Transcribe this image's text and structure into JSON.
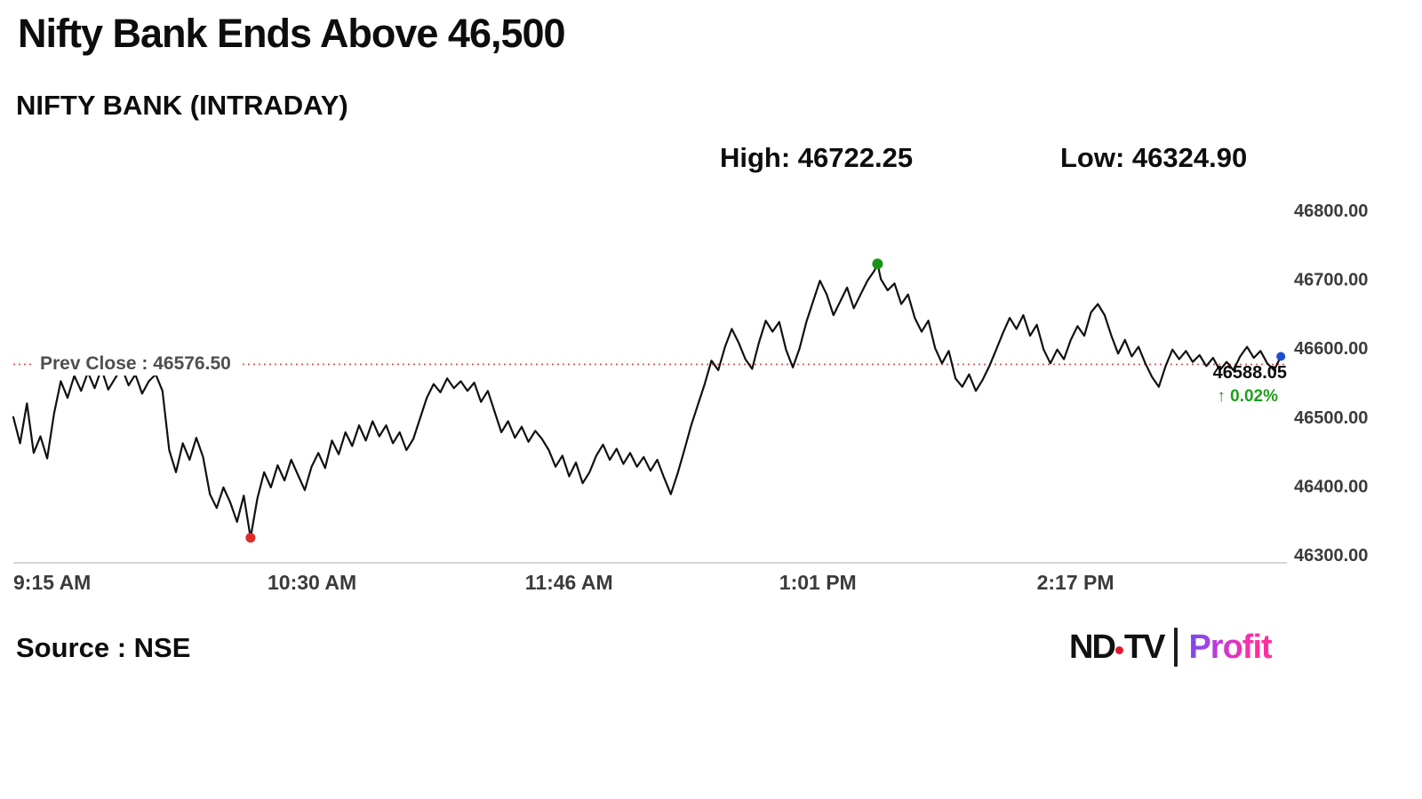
{
  "headline": "Nifty Bank Ends Above 46,500",
  "subtitle": "NIFTY BANK (INTRADAY)",
  "stats": {
    "high_label": "High: 46722.25",
    "low_label": "Low: 46324.90"
  },
  "prev_close_label": "Prev Close : 46576.50",
  "last": {
    "price_label": "46588.05",
    "change_label": "↑ 0.02%"
  },
  "source": "Source : NSE",
  "logo": {
    "ndtv_left": "ND",
    "ndtv_right": "TV",
    "profit": "Profit"
  },
  "colors": {
    "line": "#111111",
    "prev_close_line": "#d94f4f",
    "high_marker": "#169416",
    "low_marker": "#e02b2b",
    "last_marker": "#1f4ccf",
    "change_up": "#1e9e1e",
    "tick_text": "#3b3b3b",
    "axis_line": "#c9c9c9",
    "logo_dot": "#e01b2c"
  },
  "chart_data": {
    "type": "line",
    "title": "NIFTY BANK (INTRADAY)",
    "x_unit": "minutes since 9:15 AM",
    "xlim": [
      0,
      375
    ],
    "ylim": [
      46300,
      46800
    ],
    "grid": false,
    "legend": "none",
    "prev_close": 46576.5,
    "close": 46588.05,
    "change_pct": 0.02,
    "high": {
      "minute": 255,
      "value": 46722.25
    },
    "low": {
      "minute": 70,
      "value": 46324.9
    },
    "x_ticks": [
      {
        "minute": 0,
        "label": "9:15 AM"
      },
      {
        "minute": 75,
        "label": "10:30 AM"
      },
      {
        "minute": 151,
        "label": "11:46 AM"
      },
      {
        "minute": 226,
        "label": "1:01 PM"
      },
      {
        "minute": 302,
        "label": "2:17 PM"
      }
    ],
    "y_ticks": [
      {
        "value": 46300,
        "label": "46300.00"
      },
      {
        "value": 46400,
        "label": "46400.00"
      },
      {
        "value": 46500,
        "label": "46500.00"
      },
      {
        "value": 46600,
        "label": "46600.00"
      },
      {
        "value": 46700,
        "label": "46700.00"
      },
      {
        "value": 46800,
        "label": "46800.00"
      }
    ],
    "points": [
      [
        0,
        46500
      ],
      [
        2,
        46462
      ],
      [
        4,
        46520
      ],
      [
        6,
        46448
      ],
      [
        8,
        46472
      ],
      [
        10,
        46440
      ],
      [
        12,
        46505
      ],
      [
        14,
        46552
      ],
      [
        16,
        46528
      ],
      [
        18,
        46560
      ],
      [
        20,
        46538
      ],
      [
        22,
        46565
      ],
      [
        24,
        46542
      ],
      [
        26,
        46570
      ],
      [
        28,
        46540
      ],
      [
        30,
        46556
      ],
      [
        32,
        46572
      ],
      [
        34,
        46546
      ],
      [
        36,
        46562
      ],
      [
        38,
        46534
      ],
      [
        40,
        46552
      ],
      [
        42,
        46562
      ],
      [
        44,
        46538
      ],
      [
        46,
        46452
      ],
      [
        48,
        46420
      ],
      [
        50,
        46462
      ],
      [
        52,
        46438
      ],
      [
        54,
        46470
      ],
      [
        56,
        46442
      ],
      [
        58,
        46388
      ],
      [
        60,
        46368
      ],
      [
        62,
        46398
      ],
      [
        64,
        46376
      ],
      [
        66,
        46348
      ],
      [
        68,
        46386
      ],
      [
        70,
        46324.9
      ],
      [
        72,
        46382
      ],
      [
        74,
        46420
      ],
      [
        76,
        46398
      ],
      [
        78,
        46430
      ],
      [
        80,
        46408
      ],
      [
        82,
        46438
      ],
      [
        84,
        46416
      ],
      [
        86,
        46394
      ],
      [
        88,
        46428
      ],
      [
        90,
        46448
      ],
      [
        92,
        46426
      ],
      [
        94,
        46466
      ],
      [
        96,
        46446
      ],
      [
        98,
        46478
      ],
      [
        100,
        46458
      ],
      [
        102,
        46488
      ],
      [
        104,
        46466
      ],
      [
        106,
        46494
      ],
      [
        108,
        46472
      ],
      [
        110,
        46488
      ],
      [
        112,
        46462
      ],
      [
        114,
        46478
      ],
      [
        116,
        46452
      ],
      [
        118,
        46468
      ],
      [
        120,
        46498
      ],
      [
        122,
        46528
      ],
      [
        124,
        46548
      ],
      [
        126,
        46536
      ],
      [
        128,
        46556
      ],
      [
        130,
        46542
      ],
      [
        132,
        46552
      ],
      [
        134,
        46538
      ],
      [
        136,
        46550
      ],
      [
        138,
        46522
      ],
      [
        140,
        46538
      ],
      [
        142,
        46508
      ],
      [
        144,
        46478
      ],
      [
        146,
        46494
      ],
      [
        148,
        46470
      ],
      [
        150,
        46486
      ],
      [
        152,
        46464
      ],
      [
        154,
        46480
      ],
      [
        156,
        46468
      ],
      [
        158,
        46452
      ],
      [
        160,
        46428
      ],
      [
        162,
        46444
      ],
      [
        164,
        46414
      ],
      [
        166,
        46434
      ],
      [
        168,
        46404
      ],
      [
        170,
        46420
      ],
      [
        172,
        46444
      ],
      [
        174,
        46460
      ],
      [
        176,
        46438
      ],
      [
        178,
        46454
      ],
      [
        180,
        46432
      ],
      [
        182,
        46448
      ],
      [
        184,
        46428
      ],
      [
        186,
        46442
      ],
      [
        188,
        46422
      ],
      [
        190,
        46438
      ],
      [
        192,
        46412
      ],
      [
        194,
        46388
      ],
      [
        196,
        46418
      ],
      [
        198,
        46452
      ],
      [
        200,
        46488
      ],
      [
        202,
        46518
      ],
      [
        204,
        46548
      ],
      [
        206,
        46582
      ],
      [
        208,
        46568
      ],
      [
        210,
        46602
      ],
      [
        212,
        46628
      ],
      [
        214,
        46608
      ],
      [
        216,
        46584
      ],
      [
        218,
        46570
      ],
      [
        220,
        46608
      ],
      [
        222,
        46640
      ],
      [
        224,
        46624
      ],
      [
        226,
        46638
      ],
      [
        228,
        46598
      ],
      [
        230,
        46572
      ],
      [
        232,
        46600
      ],
      [
        234,
        46638
      ],
      [
        236,
        46668
      ],
      [
        238,
        46698
      ],
      [
        240,
        46678
      ],
      [
        242,
        46648
      ],
      [
        244,
        46668
      ],
      [
        246,
        46688
      ],
      [
        248,
        46658
      ],
      [
        250,
        46678
      ],
      [
        252,
        46698
      ],
      [
        254,
        46712
      ],
      [
        255,
        46722.25
      ],
      [
        256,
        46700
      ],
      [
        258,
        46684
      ],
      [
        260,
        46694
      ],
      [
        262,
        46664
      ],
      [
        264,
        46678
      ],
      [
        266,
        46644
      ],
      [
        268,
        46624
      ],
      [
        270,
        46640
      ],
      [
        272,
        46600
      ],
      [
        274,
        46578
      ],
      [
        276,
        46596
      ],
      [
        278,
        46556
      ],
      [
        280,
        46544
      ],
      [
        282,
        46562
      ],
      [
        284,
        46538
      ],
      [
        286,
        46554
      ],
      [
        288,
        46574
      ],
      [
        290,
        46598
      ],
      [
        292,
        46622
      ],
      [
        294,
        46644
      ],
      [
        296,
        46628
      ],
      [
        298,
        46648
      ],
      [
        300,
        46618
      ],
      [
        302,
        46634
      ],
      [
        304,
        46598
      ],
      [
        306,
        46578
      ],
      [
        308,
        46598
      ],
      [
        310,
        46584
      ],
      [
        312,
        46612
      ],
      [
        314,
        46632
      ],
      [
        316,
        46618
      ],
      [
        318,
        46652
      ],
      [
        320,
        46664
      ],
      [
        322,
        46648
      ],
      [
        324,
        46618
      ],
      [
        326,
        46592
      ],
      [
        328,
        46612
      ],
      [
        330,
        46588
      ],
      [
        332,
        46602
      ],
      [
        334,
        46578
      ],
      [
        336,
        46558
      ],
      [
        338,
        46544
      ],
      [
        340,
        46574
      ],
      [
        342,
        46598
      ],
      [
        344,
        46584
      ],
      [
        346,
        46596
      ],
      [
        348,
        46580
      ],
      [
        350,
        46590
      ],
      [
        352,
        46574
      ],
      [
        354,
        46586
      ],
      [
        356,
        46568
      ],
      [
        358,
        46580
      ],
      [
        360,
        46568
      ],
      [
        362,
        46588
      ],
      [
        364,
        46602
      ],
      [
        366,
        46586
      ],
      [
        368,
        46596
      ],
      [
        370,
        46578
      ],
      [
        372,
        46568
      ],
      [
        374,
        46588.05
      ]
    ]
  }
}
